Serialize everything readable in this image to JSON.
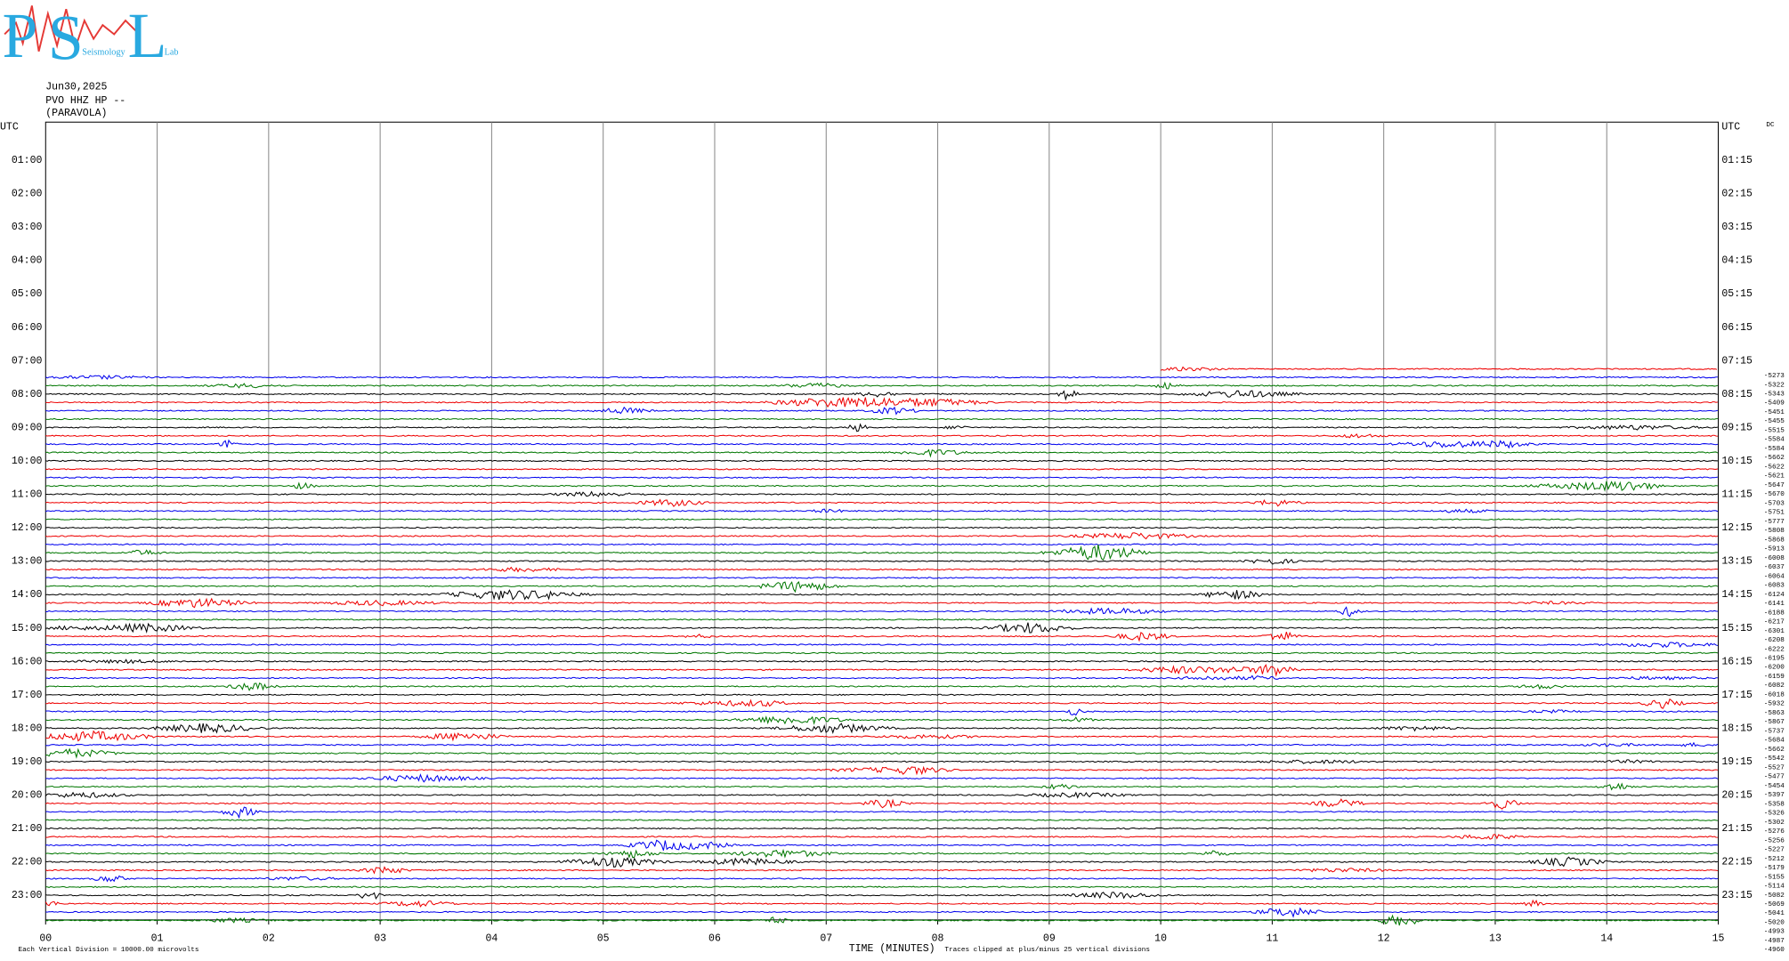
{
  "logo": {
    "letters": [
      "P",
      "S",
      "L"
    ],
    "words": [
      "Seismology",
      "Lab"
    ]
  },
  "header": {
    "date": "Jun30,2025",
    "station": "PVO HHZ HP --",
    "location": "(PARAVOLA)"
  },
  "left_labels": [
    "UTC",
    "01:00",
    "02:00",
    "03:00",
    "04:00",
    "05:00",
    "06:00",
    "07:00",
    "08:00",
    "09:00",
    "10:00",
    "11:00",
    "12:00",
    "13:00",
    "14:00",
    "15:00",
    "16:00",
    "17:00",
    "18:00",
    "19:00",
    "20:00",
    "21:00",
    "22:00",
    "23:00"
  ],
  "right_labels": [
    "UTC",
    "01:15",
    "02:15",
    "03:15",
    "04:15",
    "05:15",
    "06:15",
    "07:15",
    "08:15",
    "09:15",
    "10:15",
    "11:15",
    "12:15",
    "13:15",
    "14:15",
    "15:15",
    "16:15",
    "17:15",
    "18:15",
    "19:15",
    "20:15",
    "21:15",
    "22:15",
    "23:15"
  ],
  "dc_label": "DC",
  "dc_values": [
    "-5273",
    "-5322",
    "-5343",
    "-5409",
    "-5451",
    "-5455",
    "-5515",
    "-5584",
    "-5584",
    "-5662",
    "-5622",
    "-5621",
    "-5647",
    "-5670",
    "-5703",
    "-5751",
    "-5777",
    "-5808",
    "-5868",
    "-5913",
    "-6008",
    "-6037",
    "-6064",
    "-6083",
    "-6124",
    "-6141",
    "-6188",
    "-6217",
    "-6301",
    "-6208",
    "-6222",
    "-6195",
    "-6200",
    "-6159",
    "-6082",
    "-6018",
    "-5932",
    "-5863",
    "-5867",
    "-5737",
    "-5684",
    "-5662",
    "-5542",
    "-5527",
    "-5477",
    "-5454",
    "-5397",
    "-5358",
    "-5326",
    "-5302",
    "-5276",
    "-5256",
    "-5227",
    "-5212",
    "-5179",
    "-5155",
    "-5114",
    "-5082",
    "-5069",
    "-5041",
    "-5020",
    "-4993",
    "-4987",
    "-4960"
  ],
  "x_ticks": [
    "00",
    "01",
    "02",
    "03",
    "04",
    "05",
    "06",
    "07",
    "08",
    "09",
    "10",
    "11",
    "12",
    "13",
    "14",
    "15"
  ],
  "footer": {
    "left": "Each Vertical Division = 10000.00 microvolts",
    "center": "TIME (MINUTES)",
    "right": "Traces clipped at plus/minus 25 vertical divisions"
  }
}
